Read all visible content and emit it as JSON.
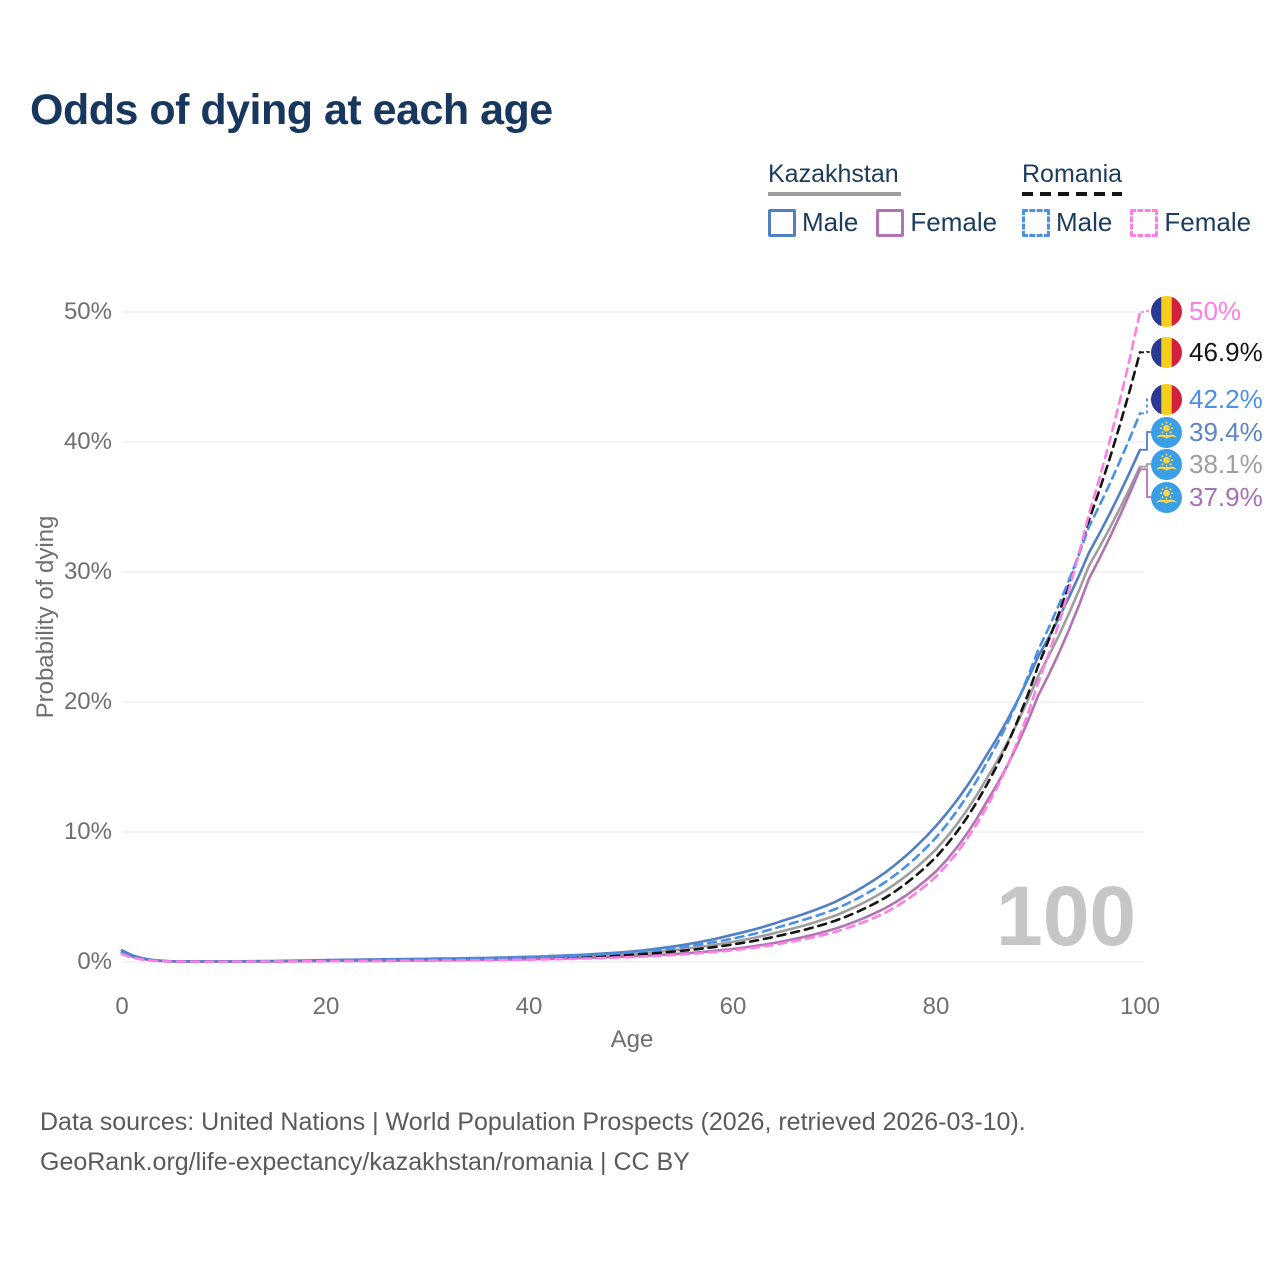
{
  "title": "Odds of dying at each age",
  "watermark": "100",
  "legend": {
    "kazakhstan": {
      "label": "Kazakhstan",
      "male_label": "Male",
      "female_label": "Female",
      "line_color": "#9e9e9e"
    },
    "romania": {
      "label": "Romania",
      "male_label": "Male",
      "female_label": "Female",
      "line_color": "#151515"
    }
  },
  "axes": {
    "y_title": "Probability of dying",
    "x_title": "Age",
    "y_ticks": [
      "0%",
      "10%",
      "20%",
      "30%",
      "40%",
      "50%"
    ],
    "x_ticks": [
      "0",
      "20",
      "40",
      "60",
      "80",
      "100"
    ]
  },
  "chart_data": {
    "type": "line",
    "title": "Odds of dying at each age",
    "xlabel": "Age",
    "ylabel": "Probability of dying",
    "xlim": [
      0,
      100
    ],
    "ylim_pct": [
      0,
      50
    ],
    "x_ticks": [
      0,
      20,
      40,
      60,
      80,
      100
    ],
    "y_ticks_pct": [
      0,
      10,
      20,
      30,
      40,
      50
    ],
    "grid": "horizontal",
    "legend_position": "top-right",
    "ages": [
      0,
      5,
      10,
      15,
      20,
      25,
      30,
      35,
      40,
      45,
      50,
      55,
      60,
      65,
      70,
      75,
      80,
      85,
      90,
      95,
      100
    ],
    "series": [
      {
        "key": "kazakhstan-male",
        "name": "Kazakhstan Male",
        "color": "#527ec4",
        "dashed": false,
        "end_value_pct": 39.4,
        "values_pct": [
          0.9,
          0.05,
          0.04,
          0.08,
          0.15,
          0.2,
          0.25,
          0.3,
          0.4,
          0.55,
          0.8,
          1.3,
          2.1,
          3.2,
          4.6,
          6.9,
          10.5,
          16.0,
          23.5,
          31.5,
          39.4
        ]
      },
      {
        "key": "kazakhstan-female",
        "name": "Kazakhstan Female",
        "color": "#b173b4",
        "dashed": false,
        "end_value_pct": 37.9,
        "values_pct": [
          0.75,
          0.04,
          0.03,
          0.045,
          0.07,
          0.09,
          0.12,
          0.16,
          0.21,
          0.3,
          0.43,
          0.65,
          1.0,
          1.6,
          2.55,
          4.15,
          7.0,
          12.4,
          20.5,
          29.5,
          37.9
        ]
      },
      {
        "key": "kazakhstan-all",
        "name": "Kazakhstan",
        "color": "#9e9e9e",
        "dashed": false,
        "end_value_pct": 38.1,
        "values_pct": [
          0.82,
          0.045,
          0.035,
          0.06,
          0.11,
          0.15,
          0.19,
          0.23,
          0.31,
          0.43,
          0.62,
          0.98,
          1.55,
          2.4,
          3.55,
          5.5,
          8.7,
          14.2,
          22.0,
          30.5,
          38.1
        ]
      },
      {
        "key": "romania-male",
        "name": "Romania Male",
        "color": "#4a90e8",
        "dashed": true,
        "end_value_pct": 42.2,
        "values_pct": [
          0.7,
          0.04,
          0.03,
          0.06,
          0.1,
          0.15,
          0.2,
          0.25,
          0.35,
          0.5,
          0.75,
          1.15,
          1.8,
          2.8,
          4.05,
          6.15,
          9.6,
          15.4,
          24.0,
          33.5,
          42.2
        ]
      },
      {
        "key": "romania-female",
        "name": "Romania Female",
        "color": "#ff7ee3",
        "dashed": true,
        "end_value_pct": 50.0,
        "values_pct": [
          0.6,
          0.03,
          0.025,
          0.04,
          0.06,
          0.08,
          0.1,
          0.13,
          0.18,
          0.26,
          0.38,
          0.58,
          0.9,
          1.45,
          2.3,
          3.8,
          6.6,
          12.0,
          21.5,
          34.5,
          50.0
        ]
      },
      {
        "key": "romania-all",
        "name": "Romania",
        "color": "#151515",
        "dashed": true,
        "end_value_pct": 46.9,
        "values_pct": [
          0.65,
          0.035,
          0.028,
          0.05,
          0.08,
          0.115,
          0.15,
          0.19,
          0.27,
          0.38,
          0.56,
          0.86,
          1.35,
          2.1,
          3.15,
          4.95,
          8.1,
          13.7,
          22.8,
          34.0,
          46.9
        ]
      }
    ]
  },
  "end_labels": [
    {
      "series": "romania-female",
      "text": "50%",
      "color": "#ff7ee3",
      "flag": "romania"
    },
    {
      "series": "romania-all",
      "text": "46.9%",
      "color": "#151515",
      "flag": "romania"
    },
    {
      "series": "romania-male",
      "text": "42.2%",
      "color": "#4a90e8",
      "flag": "romania"
    },
    {
      "series": "kazakhstan-male",
      "text": "39.4%",
      "color": "#5b84c4",
      "flag": "kazakhstan"
    },
    {
      "series": "kazakhstan-all",
      "text": "38.1%",
      "color": "#9e9e9e",
      "flag": "kazakhstan"
    },
    {
      "series": "kazakhstan-female",
      "text": "37.9%",
      "color": "#a76fb5",
      "flag": "kazakhstan"
    }
  ],
  "footer": {
    "line1": "Data sources: United Nations | World Population Prospects (2026, retrieved 2026-03-10).",
    "line2": "GeoRank.org/life-expectancy/kazakhstan/romania | CC BY"
  }
}
